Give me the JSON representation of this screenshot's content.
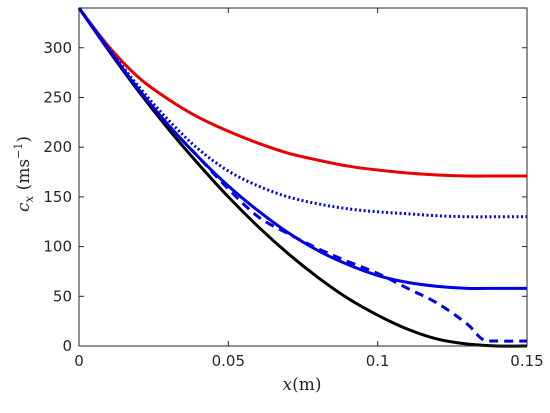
{
  "chart_data": {
    "type": "line",
    "title": "",
    "xlabel_parts": {
      "var": "x",
      "unit": "(m)"
    },
    "ylabel_parts": {
      "var": "c",
      "sub": "x",
      "unit_open": " (ms",
      "sup": "−1",
      "unit_close": ")"
    },
    "xlim": [
      0,
      0.15
    ],
    "ylim": [
      0,
      340
    ],
    "xticks": [
      0,
      0.05,
      0.1,
      0.15
    ],
    "xtick_labels": [
      "0",
      "0.05",
      "0.1",
      "0.15"
    ],
    "yticks": [
      0,
      50,
      100,
      150,
      200,
      250,
      300
    ],
    "ytick_labels": [
      "0",
      "50",
      "100",
      "150",
      "200",
      "250",
      "300"
    ],
    "grid": false,
    "legend": "none",
    "series": [
      {
        "color": "#000000",
        "style": "solid",
        "x": [
          0,
          0.01,
          0.02,
          0.03,
          0.04,
          0.05,
          0.06,
          0.07,
          0.08,
          0.09,
          0.1,
          0.11,
          0.12,
          0.13,
          0.14,
          0.15
        ],
        "y": [
          340,
          297,
          256,
          218,
          183,
          150,
          120,
          93,
          69,
          48,
          31,
          17,
          7,
          2,
          0,
          0
        ]
      },
      {
        "color": "#e60000",
        "style": "solid",
        "x": [
          0,
          0.01,
          0.02,
          0.03,
          0.04,
          0.05,
          0.06,
          0.07,
          0.08,
          0.09,
          0.1,
          0.11,
          0.12,
          0.13,
          0.14,
          0.15
        ],
        "y": [
          340,
          301,
          270,
          248,
          230,
          216,
          204,
          194,
          187,
          181,
          177,
          174,
          172,
          171,
          171,
          171
        ]
      },
      {
        "color": "#0000e6",
        "style": "dotted",
        "x": [
          0,
          0.01,
          0.02,
          0.03,
          0.04,
          0.05,
          0.06,
          0.07,
          0.08,
          0.09,
          0.1,
          0.11,
          0.12,
          0.13,
          0.14,
          0.15
        ],
        "y": [
          340,
          299,
          261,
          227,
          198,
          176,
          161,
          150,
          143,
          138,
          135,
          133,
          131,
          130,
          130,
          130
        ]
      },
      {
        "color": "#0000e6",
        "style": "solid",
        "x": [
          0,
          0.01,
          0.02,
          0.03,
          0.04,
          0.05,
          0.06,
          0.07,
          0.08,
          0.09,
          0.1,
          0.11,
          0.12,
          0.13,
          0.14,
          0.15
        ],
        "y": [
          340,
          298,
          258,
          222,
          190,
          161,
          136,
          114,
          96,
          82,
          71,
          64,
          60,
          58,
          58,
          58
        ]
      },
      {
        "color": "#0000e6",
        "style": "dashed",
        "x": [
          0,
          0.01,
          0.02,
          0.03,
          0.04,
          0.05,
          0.06,
          0.07,
          0.08,
          0.09,
          0.1,
          0.11,
          0.12,
          0.13,
          0.135,
          0.14,
          0.15
        ],
        "y": [
          340,
          298,
          258,
          222,
          190,
          158,
          130,
          113,
          98,
          85,
          73,
          58,
          43,
          22,
          7,
          5,
          5
        ]
      }
    ]
  }
}
